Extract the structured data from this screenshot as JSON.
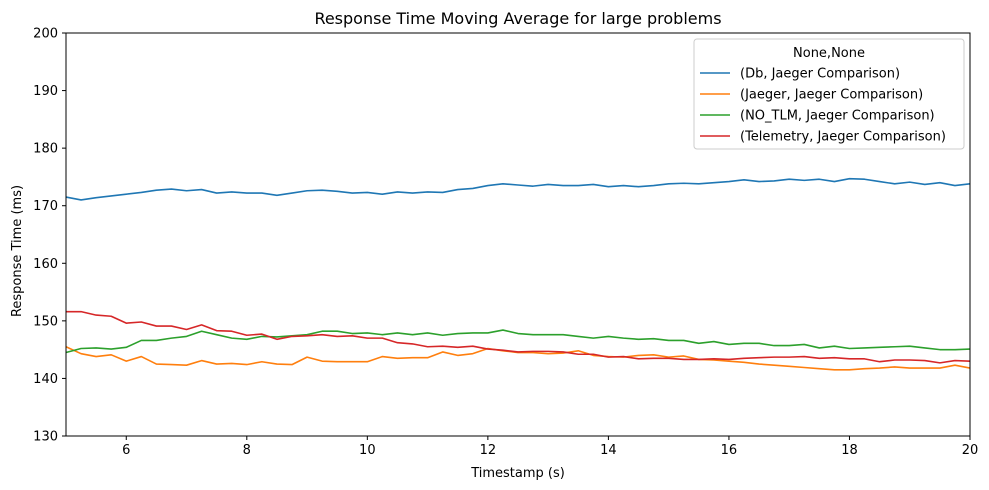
{
  "chart_data": {
    "type": "line",
    "title": "Response Time Moving Average for large problems",
    "xlabel": "Timestamp (s)",
    "ylabel": "Response Time (ms)",
    "xlim": [
      5,
      20
    ],
    "ylim": [
      130,
      200
    ],
    "xticks": [
      6,
      8,
      10,
      12,
      14,
      16,
      18,
      20
    ],
    "yticks": [
      130,
      140,
      150,
      160,
      170,
      180,
      190,
      200
    ],
    "grid": false,
    "legend": {
      "title": "None,None",
      "position": "top-right"
    },
    "x": [
      5.0,
      5.25,
      5.5,
      5.75,
      6.0,
      6.25,
      6.5,
      6.75,
      7.0,
      7.25,
      7.5,
      7.75,
      8.0,
      8.25,
      8.5,
      8.75,
      9.0,
      9.25,
      9.5,
      9.75,
      10.0,
      10.25,
      10.5,
      10.75,
      11.0,
      11.25,
      11.5,
      11.75,
      12.0,
      12.25,
      12.5,
      12.75,
      13.0,
      13.25,
      13.5,
      13.75,
      14.0,
      14.25,
      14.5,
      14.75,
      15.0,
      15.25,
      15.5,
      15.75,
      16.0,
      16.25,
      16.5,
      16.75,
      17.0,
      17.25,
      17.5,
      17.75,
      18.0,
      18.25,
      18.5,
      18.75,
      19.0,
      19.25,
      19.5,
      19.75,
      20.0
    ],
    "series": [
      {
        "name": "(Db, Jaeger Comparison)",
        "color": "#1f77b4",
        "values": [
          171.5,
          171.0,
          171.4,
          171.7,
          172.0,
          172.3,
          172.7,
          172.9,
          172.6,
          172.8,
          172.2,
          172.4,
          172.2,
          172.2,
          171.8,
          172.2,
          172.6,
          172.7,
          172.5,
          172.2,
          172.3,
          172.0,
          172.4,
          172.2,
          172.4,
          172.3,
          172.8,
          173.0,
          173.5,
          173.8,
          173.6,
          173.4,
          173.7,
          173.5,
          173.5,
          173.7,
          173.3,
          173.5,
          173.3,
          173.5,
          173.8,
          173.9,
          173.8,
          174.0,
          174.2,
          174.5,
          174.2,
          174.3,
          174.6,
          174.4,
          174.6,
          174.2,
          174.7,
          174.6,
          174.2,
          173.8,
          174.1,
          173.7,
          174.0,
          173.5,
          173.8
        ]
      },
      {
        "name": "(Jaeger, Jaeger Comparison)",
        "color": "#ff7f0e",
        "values": [
          145.5,
          144.3,
          143.8,
          144.1,
          143.0,
          143.8,
          142.5,
          142.4,
          142.3,
          143.1,
          142.5,
          142.6,
          142.4,
          142.9,
          142.5,
          142.4,
          143.7,
          143.0,
          142.9,
          142.9,
          142.9,
          143.8,
          143.5,
          143.6,
          143.6,
          144.6,
          144.0,
          144.3,
          145.2,
          144.8,
          144.5,
          144.5,
          144.3,
          144.4,
          144.8,
          144.0,
          143.8,
          143.7,
          144.0,
          144.1,
          143.7,
          143.9,
          143.3,
          143.2,
          143.0,
          142.8,
          142.5,
          142.3,
          142.1,
          141.9,
          141.7,
          141.5,
          141.5,
          141.7,
          141.8,
          142.0,
          141.8,
          141.8,
          141.8,
          142.3,
          141.8
        ]
      },
      {
        "name": "(NO_TLM, Jaeger Comparison)",
        "color": "#2ca02c",
        "values": [
          144.5,
          145.2,
          145.3,
          145.1,
          145.4,
          146.6,
          146.6,
          147.0,
          147.3,
          148.2,
          147.6,
          147.0,
          146.8,
          147.3,
          147.2,
          147.4,
          147.6,
          148.2,
          148.2,
          147.8,
          147.9,
          147.6,
          147.9,
          147.6,
          147.9,
          147.5,
          147.8,
          147.9,
          147.9,
          148.4,
          147.8,
          147.6,
          147.6,
          147.6,
          147.3,
          147.0,
          147.3,
          147.0,
          146.8,
          146.9,
          146.6,
          146.6,
          146.1,
          146.4,
          145.9,
          146.1,
          146.1,
          145.7,
          145.7,
          145.9,
          145.3,
          145.6,
          145.2,
          145.3,
          145.4,
          145.5,
          145.6,
          145.3,
          145.0,
          145.0,
          145.1
        ]
      },
      {
        "name": "(Telemetry, Jaeger Comparison)",
        "color": "#d62728",
        "values": [
          151.6,
          151.6,
          151.0,
          150.8,
          149.6,
          149.8,
          149.1,
          149.1,
          148.5,
          149.3,
          148.3,
          148.2,
          147.5,
          147.7,
          146.8,
          147.3,
          147.4,
          147.6,
          147.3,
          147.4,
          147.0,
          147.0,
          146.2,
          146.0,
          145.5,
          145.6,
          145.4,
          145.6,
          145.1,
          144.9,
          144.6,
          144.7,
          144.7,
          144.6,
          144.2,
          144.2,
          143.7,
          143.8,
          143.4,
          143.5,
          143.5,
          143.3,
          143.3,
          143.4,
          143.3,
          143.5,
          143.6,
          143.7,
          143.7,
          143.8,
          143.5,
          143.6,
          143.4,
          143.4,
          142.9,
          143.2,
          143.2,
          143.1,
          142.7,
          143.1,
          143.0
        ]
      }
    ]
  }
}
